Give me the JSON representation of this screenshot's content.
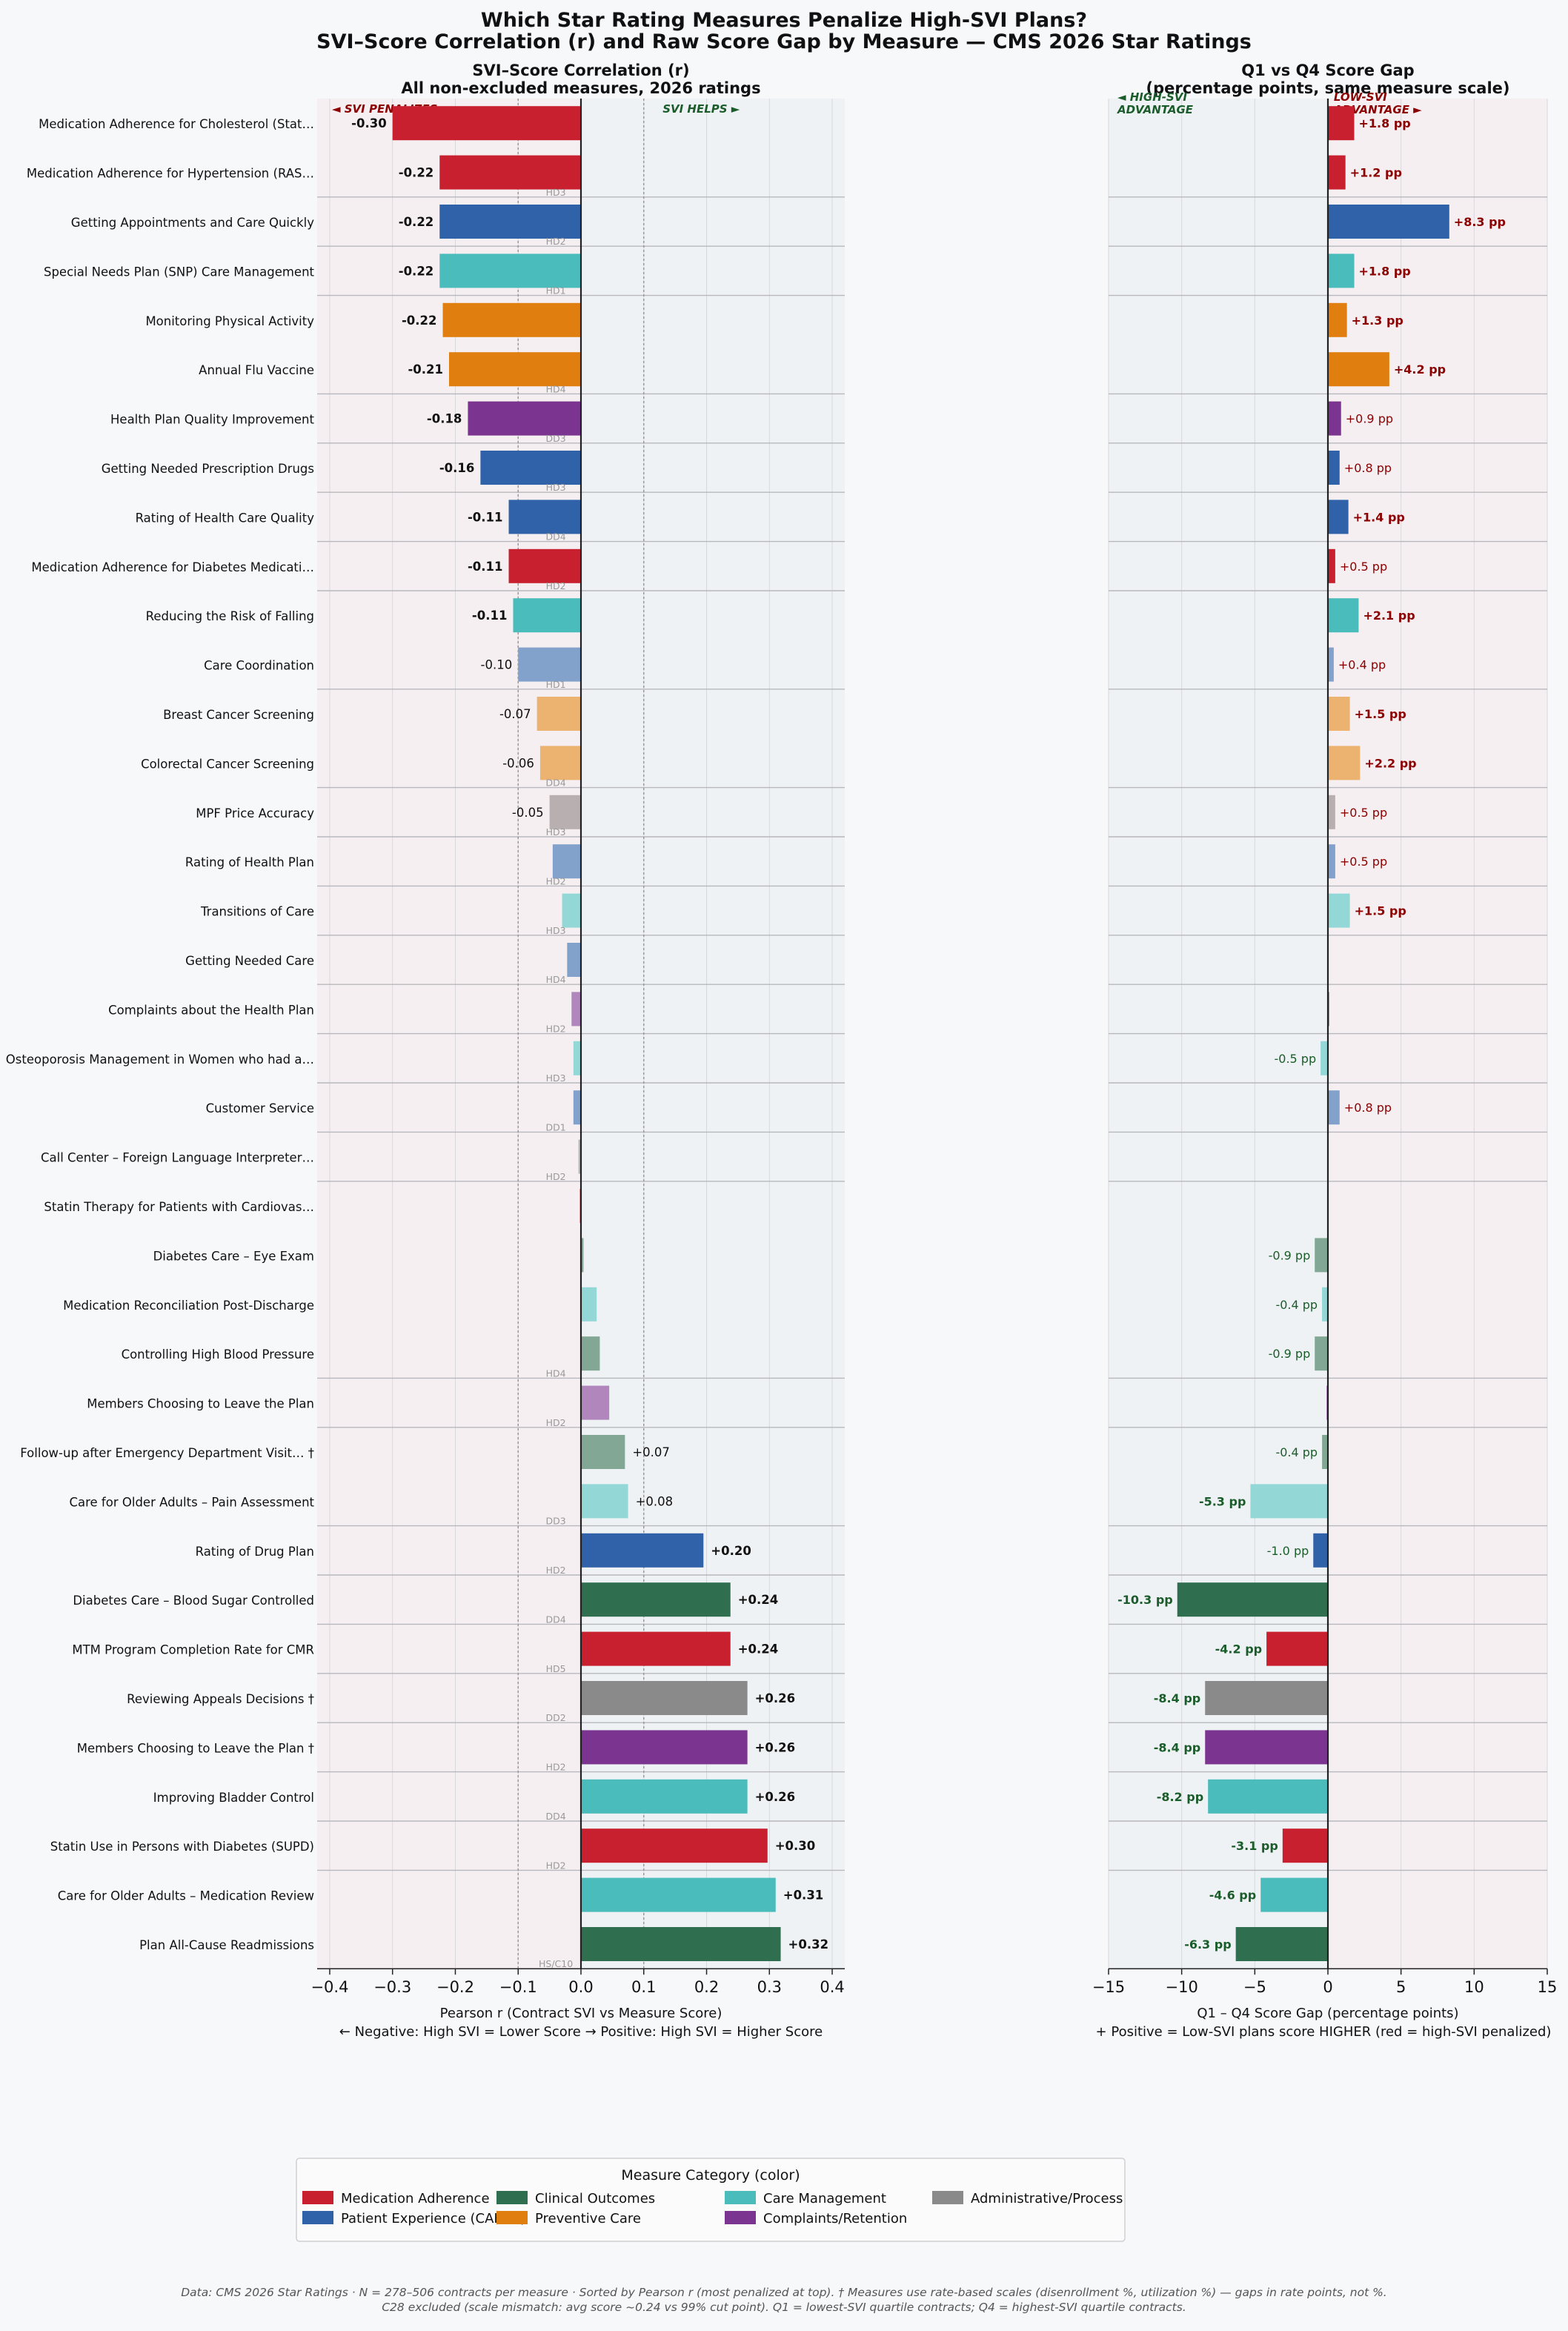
{
  "title": "Which Star Rating Measures Penalize High-SVI Plans?",
  "subtitle": "SVI–Score Correlation (r) and Raw Score Gap by Measure — CMS 2026 Star Ratings",
  "colors": {
    "Medication Adherence": "#c8202f",
    "Patient Experience (CAHPS)": "#2f62a8",
    "Clinical Outcomes": "#2f6e4f",
    "Preventive Care": "#e07f10",
    "Care Management": "#4bbcbc",
    "Complaints/Retention": "#7b3590",
    "Administrative/Process": "#8a8a8a",
    "penalize_text": "#8b0000",
    "helps_text": "#1a5c2a",
    "penalize_bg": "#f5eff2",
    "helps_bg": "#eff2f4"
  },
  "chart_data": [
    {
      "type": "bar",
      "orientation": "horizontal",
      "title": "SVI–Score Correlation (r)",
      "subtitle": "All non-excluded measures, 2026 ratings",
      "xlabel": "Pearson r (Contract SVI vs Measure Score)",
      "xlabel_note": "← Negative: High SVI = Lower Score  →  Positive: High SVI = Higher Score",
      "xlim": [
        -0.42,
        0.42
      ],
      "xticks": [
        "−0.4",
        "−0.3",
        "−0.2",
        "−0.1",
        "0.0",
        "0.1",
        "0.2",
        "0.3",
        "0.4"
      ],
      "xtick_values": [
        -0.4,
        -0.3,
        -0.2,
        -0.1,
        0.0,
        0.1,
        0.2,
        0.3,
        0.4
      ],
      "reference_lines": [
        -0.1,
        0.1
      ],
      "annotation_left": "◄ SVI PENALIZES",
      "annotation_right": "SVI HELPS ►",
      "grid": true
    },
    {
      "type": "bar",
      "orientation": "horizontal",
      "title": "Q1 vs Q4 Score Gap",
      "subtitle": "(percentage points, same measure scale)",
      "xlabel": "Q1 – Q4 Score Gap (percentage points)",
      "xlabel_note": "+ Positive = Low-SVI plans score HIGHER (red = high-SVI penalized)",
      "xlim": [
        -15,
        15
      ],
      "xticks": [
        "−15",
        "−10",
        "−5",
        "0",
        "5",
        "10",
        "15"
      ],
      "xtick_values": [
        -15,
        -10,
        -5,
        0,
        5,
        10,
        15
      ],
      "annotation_left": [
        "◄ HIGH-SVI",
        "ADVANTAGE"
      ],
      "annotation_right": [
        "LOW-SVI",
        "ADVANTAGE ►"
      ],
      "grid": true
    }
  ],
  "measures": [
    {
      "label": "Medication Adherence for Cholesterol (Stat…",
      "category": "Medication Adherence",
      "r": -0.3,
      "r_label": "-0.30",
      "r_bold": true,
      "gap": 1.8,
      "gap_label": "+1.8 pp",
      "gap_bold": true,
      "domain": ""
    },
    {
      "label": "Medication Adherence for Hypertension (RAS…",
      "category": "Medication Adherence",
      "r": -0.225,
      "r_label": "-0.22",
      "r_bold": true,
      "gap": 1.2,
      "gap_label": "+1.2 pp",
      "gap_bold": true,
      "domain": "HD3"
    },
    {
      "label": "Getting Appointments and Care Quickly",
      "category": "Patient Experience (CAHPS)",
      "r": -0.225,
      "r_label": "-0.22",
      "r_bold": true,
      "gap": 8.3,
      "gap_label": "+8.3 pp",
      "gap_bold": true,
      "domain": "HD2"
    },
    {
      "label": "Special Needs Plan (SNP) Care Management",
      "category": "Care Management",
      "r": -0.225,
      "r_label": "-0.22",
      "r_bold": true,
      "gap": 1.8,
      "gap_label": "+1.8 pp",
      "gap_bold": true,
      "domain": "HD1"
    },
    {
      "label": "Monitoring Physical Activity",
      "category": "Preventive Care",
      "r": -0.22,
      "r_label": "-0.22",
      "r_bold": true,
      "gap": 1.3,
      "gap_label": "+1.3 pp",
      "gap_bold": true,
      "domain": ""
    },
    {
      "label": "Annual Flu Vaccine",
      "category": "Preventive Care",
      "r": -0.21,
      "r_label": "-0.21",
      "r_bold": true,
      "gap": 4.2,
      "gap_label": "+4.2 pp",
      "gap_bold": true,
      "domain": "HD4"
    },
    {
      "label": "Health Plan Quality Improvement",
      "category": "Complaints/Retention",
      "r": -0.18,
      "r_label": "-0.18",
      "r_bold": true,
      "gap": 0.9,
      "gap_label": "+0.9 pp",
      "gap_bold": false,
      "domain": "DD3"
    },
    {
      "label": "Getting Needed Prescription Drugs",
      "category": "Patient Experience (CAHPS)",
      "r": -0.16,
      "r_label": "-0.16",
      "r_bold": true,
      "gap": 0.8,
      "gap_label": "+0.8 pp",
      "gap_bold": false,
      "domain": "HD3"
    },
    {
      "label": "Rating of Health Care Quality",
      "category": "Patient Experience (CAHPS)",
      "r": -0.115,
      "r_label": "-0.11",
      "r_bold": true,
      "gap": 1.4,
      "gap_label": "+1.4 pp",
      "gap_bold": true,
      "domain": "DD4"
    },
    {
      "label": "Medication Adherence for Diabetes Medicati…",
      "category": "Medication Adherence",
      "r": -0.115,
      "r_label": "-0.11",
      "r_bold": true,
      "gap": 0.5,
      "gap_label": "+0.5 pp",
      "gap_bold": false,
      "domain": "HD2"
    },
    {
      "label": "Reducing the Risk of Falling",
      "category": "Care Management",
      "r": -0.108,
      "r_label": "-0.11",
      "r_bold": true,
      "gap": 2.1,
      "gap_label": "+2.1 pp",
      "gap_bold": true,
      "domain": ""
    },
    {
      "label": "Care Coordination",
      "category": "Patient Experience (CAHPS)",
      "r": -0.1,
      "r_label": "-0.10",
      "r_bold": false,
      "gap": 0.4,
      "gap_label": "+0.4 pp",
      "gap_bold": false,
      "domain": "HD1",
      "light": true
    },
    {
      "label": "Breast Cancer Screening",
      "category": "Preventive Care",
      "r": -0.07,
      "r_label": "-0.07",
      "r_bold": false,
      "gap": 1.5,
      "gap_label": "+1.5 pp",
      "gap_bold": true,
      "domain": "",
      "light": true
    },
    {
      "label": "Colorectal Cancer Screening",
      "category": "Preventive Care",
      "r": -0.065,
      "r_label": "-0.06",
      "r_bold": false,
      "gap": 2.2,
      "gap_label": "+2.2 pp",
      "gap_bold": true,
      "domain": "DD4",
      "light": true
    },
    {
      "label": "MPF Price Accuracy",
      "category": "Administrative/Process",
      "r": -0.05,
      "r_label": "-0.05",
      "r_bold": false,
      "gap": 0.5,
      "gap_label": "+0.5 pp",
      "gap_bold": false,
      "domain": "HD3",
      "light": true,
      "alt_color": "#b8b0b0"
    },
    {
      "label": "Rating of Health Plan",
      "category": "Patient Experience (CAHPS)",
      "r": -0.045,
      "r_label": "",
      "r_bold": false,
      "gap": 0.5,
      "gap_label": "+0.5 pp",
      "gap_bold": false,
      "domain": "HD2",
      "light": true
    },
    {
      "label": "Transitions of Care",
      "category": "Care Management",
      "r": -0.03,
      "r_label": "",
      "r_bold": false,
      "gap": 1.5,
      "gap_label": "+1.5 pp",
      "gap_bold": true,
      "domain": "HD3",
      "light": true
    },
    {
      "label": "Getting Needed Care",
      "category": "Patient Experience (CAHPS)",
      "r": -0.022,
      "r_label": "",
      "r_bold": false,
      "gap": 0.0,
      "gap_label": "",
      "gap_bold": false,
      "domain": "HD4",
      "light": true
    },
    {
      "label": "Complaints about the Health Plan",
      "category": "Complaints/Retention",
      "r": -0.015,
      "r_label": "",
      "r_bold": false,
      "gap": 0.1,
      "gap_label": "",
      "gap_bold": false,
      "domain": "HD2",
      "light": true
    },
    {
      "label": "Osteoporosis Management in Women who had a…",
      "category": "Care Management",
      "r": -0.012,
      "r_label": "",
      "r_bold": false,
      "gap": -0.5,
      "gap_label": "-0.5 pp",
      "gap_bold": false,
      "domain": "HD3",
      "light": true
    },
    {
      "label": "Customer Service",
      "category": "Patient Experience (CAHPS)",
      "r": -0.012,
      "r_label": "",
      "r_bold": false,
      "gap": 0.8,
      "gap_label": "+0.8 pp",
      "gap_bold": false,
      "domain": "DD1",
      "light": true
    },
    {
      "label": "Call Center – Foreign Language Interpreter…",
      "category": "Administrative/Process",
      "r": -0.004,
      "r_label": "",
      "r_bold": false,
      "gap": 0.0,
      "gap_label": "",
      "gap_bold": false,
      "domain": "HD2",
      "light": true
    },
    {
      "label": "Statin Therapy for Patients with Cardiovas…",
      "category": "Medication Adherence",
      "r": -0.002,
      "r_label": "",
      "r_bold": false,
      "gap": 0.0,
      "gap_label": "",
      "gap_bold": false,
      "domain": "",
      "light": true
    },
    {
      "label": "Diabetes Care – Eye Exam",
      "category": "Clinical Outcomes",
      "r": 0.004,
      "r_label": "",
      "r_bold": false,
      "gap": -0.9,
      "gap_label": "-0.9 pp",
      "gap_bold": false,
      "domain": "",
      "light": true
    },
    {
      "label": "Medication Reconciliation Post-Discharge",
      "category": "Care Management",
      "r": 0.025,
      "r_label": "",
      "r_bold": false,
      "gap": -0.4,
      "gap_label": "-0.4 pp",
      "gap_bold": false,
      "domain": "",
      "light": true
    },
    {
      "label": "Controlling High Blood Pressure",
      "category": "Clinical Outcomes",
      "r": 0.03,
      "r_label": "",
      "r_bold": false,
      "gap": -0.9,
      "gap_label": "-0.9 pp",
      "gap_bold": false,
      "domain": "HD4",
      "light": true
    },
    {
      "label": "Members Choosing to Leave the Plan",
      "category": "Complaints/Retention",
      "r": 0.045,
      "r_label": "",
      "r_bold": false,
      "gap": -0.1,
      "gap_label": "",
      "gap_bold": false,
      "domain": "HD2",
      "light": true
    },
    {
      "label": "Follow-up after Emergency Department Visit… †",
      "category": "Clinical Outcomes",
      "r": 0.07,
      "r_label": "+0.07",
      "r_bold": false,
      "gap": -0.4,
      "gap_label": "-0.4 pp",
      "gap_bold": false,
      "domain": "",
      "light": true
    },
    {
      "label": "Care for Older Adults – Pain Assessment",
      "category": "Care Management",
      "r": 0.075,
      "r_label": "+0.08",
      "r_bold": false,
      "gap": -5.3,
      "gap_label": "-5.3 pp",
      "gap_bold": true,
      "domain": "DD3",
      "light": true
    },
    {
      "label": "Rating of Drug Plan",
      "category": "Patient Experience (CAHPS)",
      "r": 0.195,
      "r_label": "+0.20",
      "r_bold": true,
      "gap": -1.0,
      "gap_label": "-1.0 pp",
      "gap_bold": false,
      "domain": "HD2"
    },
    {
      "label": "Diabetes Care – Blood Sugar Controlled",
      "category": "Clinical Outcomes",
      "r": 0.238,
      "r_label": "+0.24",
      "r_bold": true,
      "gap": -10.3,
      "gap_label": "-10.3 pp",
      "gap_bold": true,
      "domain": "DD4"
    },
    {
      "label": "MTM Program Completion Rate for CMR",
      "category": "Medication Adherence",
      "r": 0.238,
      "r_label": "+0.24",
      "r_bold": true,
      "gap": -4.2,
      "gap_label": "-4.2 pp",
      "gap_bold": true,
      "domain": "HD5"
    },
    {
      "label": "Reviewing Appeals Decisions †",
      "category": "Administrative/Process",
      "r": 0.265,
      "r_label": "+0.26",
      "r_bold": true,
      "gap": -8.4,
      "gap_label": "-8.4 pp",
      "gap_bold": true,
      "domain": "DD2"
    },
    {
      "label": "Members Choosing to Leave the Plan †",
      "category": "Complaints/Retention",
      "r": 0.265,
      "r_label": "+0.26",
      "r_bold": true,
      "gap": -8.4,
      "gap_label": "-8.4 pp",
      "gap_bold": true,
      "domain": "HD2"
    },
    {
      "label": "Improving Bladder Control",
      "category": "Care Management",
      "r": 0.265,
      "r_label": "+0.26",
      "r_bold": true,
      "gap": -8.2,
      "gap_label": "-8.2 pp",
      "gap_bold": true,
      "domain": "DD4"
    },
    {
      "label": "Statin Use in Persons with Diabetes (SUPD)",
      "category": "Medication Adherence",
      "r": 0.297,
      "r_label": "+0.30",
      "r_bold": true,
      "gap": -3.1,
      "gap_label": "-3.1 pp",
      "gap_bold": true,
      "domain": "HD2"
    },
    {
      "label": "Care for Older Adults – Medication Review",
      "category": "Care Management",
      "r": 0.31,
      "r_label": "+0.31",
      "r_bold": true,
      "gap": -4.6,
      "gap_label": "-4.6 pp",
      "gap_bold": true,
      "domain": ""
    },
    {
      "label": "Plan All-Cause Readmissions",
      "category": "Clinical Outcomes",
      "r": 0.318,
      "r_label": "+0.32",
      "r_bold": true,
      "gap": -6.3,
      "gap_label": "-6.3 pp",
      "gap_bold": true,
      "domain": "HS/C10"
    }
  ],
  "legend": {
    "title": "Measure Category (color)",
    "items": [
      "Medication Adherence",
      "Patient Experience (CAHPS)",
      "Clinical Outcomes",
      "Preventive Care",
      "Care Management",
      "Complaints/Retention",
      "Administrative/Process"
    ]
  },
  "footnote": [
    "Data: CMS 2026 Star Ratings · N = 278–506 contracts per measure · Sorted by Pearson r (most penalized at top). † Measures use rate-based scales (disenrollment %, utilization %) — gaps in rate points, not %.",
    "C28 excluded (scale mismatch: avg score ~0.24 vs 99% cut point). Q1 = lowest-SVI quartile contracts; Q4 = highest-SVI quartile contracts."
  ]
}
